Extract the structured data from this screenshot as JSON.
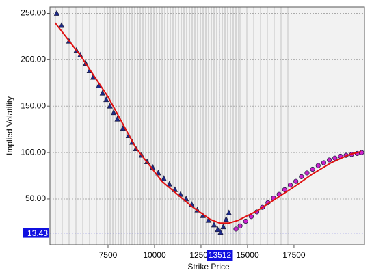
{
  "chart_data": {
    "type": "scatter",
    "xlabel": "Strike Price",
    "ylabel": "Implied Volatility",
    "xlim": [
      4375,
      21290
    ],
    "ylim": [
      0.6,
      257
    ],
    "xticks": [
      7500,
      10000,
      12500,
      15000,
      17500
    ],
    "yticks": [
      {
        "value": 50,
        "label": "50.00"
      },
      {
        "value": 100,
        "label": "100.00"
      },
      {
        "value": 150,
        "label": "150.00"
      },
      {
        "value": 200,
        "label": "200.00"
      },
      {
        "value": 250,
        "label": "250.00"
      }
    ],
    "grid": true,
    "series": [
      {
        "marker": "triangle",
        "color": "#1c2a8c",
        "x": [
          4740,
          5000,
          5400,
          5800,
          6000,
          6300,
          6500,
          6700,
          7000,
          7200,
          7400,
          7600,
          7800,
          8000,
          8300,
          8600,
          8800,
          9000,
          9300,
          9600,
          9900,
          10200,
          10500,
          10800,
          11100,
          11400,
          11700,
          12000,
          12300,
          12600,
          12900,
          13200,
          13400,
          13550,
          13700,
          13850,
          14000
        ],
        "values": [
          250,
          237,
          220,
          210,
          205,
          196,
          188,
          181,
          172,
          164,
          157,
          150,
          143,
          136,
          126,
          118,
          111,
          104,
          97,
          90,
          84,
          78,
          72,
          66,
          60,
          55,
          50,
          44,
          38,
          32,
          27,
          22,
          17,
          14,
          20,
          28,
          35
        ]
      },
      {
        "marker": "circle",
        "color": "#cc22cc",
        "x": [
          14380,
          14600,
          14900,
          15200,
          15500,
          15800,
          16100,
          16400,
          16700,
          17000,
          17300,
          17600,
          17900,
          18200,
          18500,
          18800,
          19100,
          19400,
          19700,
          20000,
          20300,
          20600,
          20900,
          21140
        ],
        "values": [
          17.6,
          21,
          26,
          31,
          36,
          41,
          46,
          51,
          55,
          60,
          65,
          69,
          74,
          78,
          82,
          86,
          89,
          92,
          94,
          96,
          97,
          98,
          99,
          100
        ]
      },
      {
        "marker": "line",
        "color": "#e01010",
        "x": [
          4650,
          6000,
          7500,
          9000,
          10400,
          12000,
          13000,
          13500,
          14000,
          14500,
          15500,
          16500,
          17500,
          18500,
          19500,
          20500,
          21100
        ],
        "values": [
          240,
          205,
          160,
          105,
          69,
          42,
          28,
          24,
          24,
          27,
          37,
          50,
          63,
          77,
          89,
          98,
          101
        ]
      }
    ],
    "crosshair": {
      "x": 13512,
      "y": 13.43
    }
  }
}
